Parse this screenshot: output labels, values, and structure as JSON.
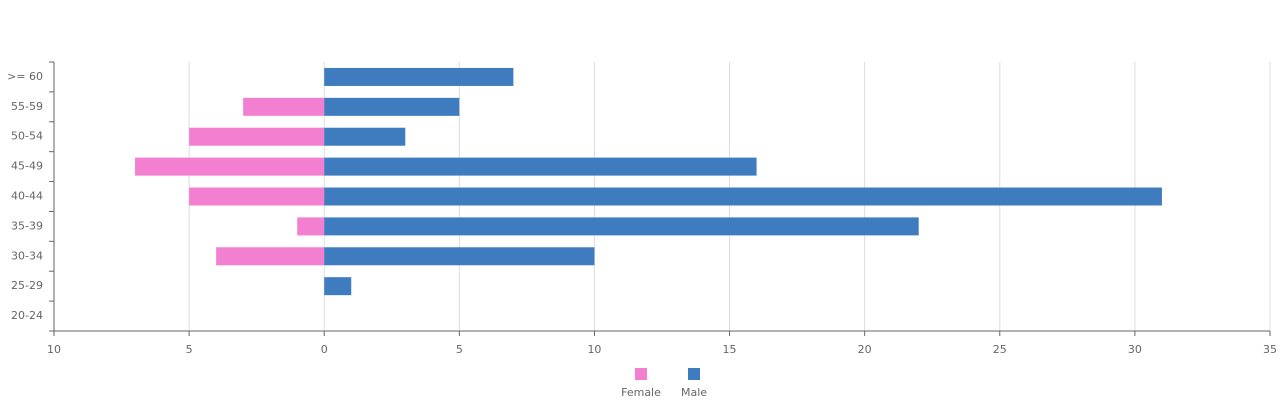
{
  "chart_data": {
    "type": "bar",
    "orientation": "horizontal",
    "stacked": "diverging",
    "categories": [
      ">= 60",
      "55-59",
      "50-54",
      "45-49",
      "40-44",
      "35-39",
      "30-34",
      "25-29",
      "20-24"
    ],
    "series": [
      {
        "name": "Female",
        "color": "#f27fcf",
        "values": [
          0,
          -3,
          -5,
          -7,
          -5,
          -1,
          -4,
          0,
          0
        ]
      },
      {
        "name": "Male",
        "color": "#3f7cbf",
        "values": [
          7,
          5,
          3,
          16,
          31,
          22,
          10,
          1,
          0
        ]
      }
    ],
    "xlim": [
      -10,
      35
    ],
    "xticks": [
      {
        "value": -10,
        "label": "10"
      },
      {
        "value": -5,
        "label": "5"
      },
      0,
      5,
      10,
      15,
      20,
      25,
      30,
      35
    ],
    "grid": true,
    "legend": "bottom"
  }
}
